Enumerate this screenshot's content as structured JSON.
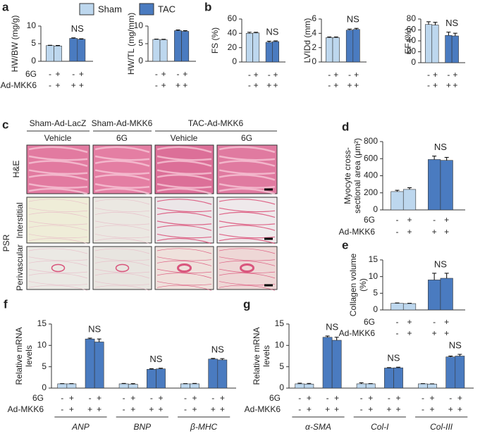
{
  "figure": {
    "panel_labels": [
      "a",
      "b",
      "c",
      "d",
      "e",
      "f",
      "g"
    ],
    "legend": [
      {
        "name": "Sham",
        "color": "#bdd7ee"
      },
      {
        "name": "TAC",
        "color": "#4a7bc0"
      }
    ]
  },
  "micrographs": {
    "column_groups": [
      "Sham-Ad-LacZ",
      "Sham-Ad-MKK6",
      "TAC-Ad-MKK6"
    ],
    "treatments": [
      "Vehicle",
      "6G",
      "Vehicle",
      "6G"
    ],
    "stains": [
      "H&E",
      "PSR"
    ],
    "psr_regions": [
      "Interstitial",
      "Perivascular"
    ]
  },
  "chart_data": [
    {
      "type": "bar",
      "ylabel_lines": [
        "HW/BW (mg/g)"
      ],
      "ylim": [
        0,
        10
      ],
      "yticks": [
        0,
        5,
        10
      ],
      "colors": [
        "#bdd7ee",
        "#bdd7ee",
        "#4a7bc0",
        "#4a7bc0"
      ],
      "groups": [
        {
          "values": [
            4.45,
            4.35,
            6.5,
            6.25
          ],
          "errors": [
            0.1,
            0.15,
            0.15,
            0.15
          ],
          "annotation": "NS"
        }
      ],
      "rows": [
        {
          "name": "6G",
          "signs": [
            "-",
            "+",
            "-",
            "+"
          ]
        },
        {
          "name": "Ad-MKK6",
          "signs": [
            "-",
            "+",
            "+",
            "+"
          ]
        }
      ]
    },
    {
      "type": "bar",
      "ylabel_lines": [
        "HW/TL (mg/mm)"
      ],
      "ylim": [
        0,
        10
      ],
      "yticks": [
        0,
        5,
        10
      ],
      "colors": [
        "#bdd7ee",
        "#bdd7ee",
        "#4a7bc0",
        "#4a7bc0"
      ],
      "groups": [
        {
          "values": [
            6.2,
            6.1,
            8.7,
            8.5
          ],
          "errors": [
            0.1,
            0.15,
            0.2,
            0.2
          ]
        }
      ],
      "rows": [
        {
          "signs": [
            "-",
            "+",
            "-",
            "+"
          ]
        },
        {
          "signs": [
            "-",
            "+",
            "+",
            "+"
          ]
        }
      ]
    },
    {
      "type": "bar",
      "ylabel_lines": [
        "FS (%)"
      ],
      "ylim": [
        0,
        60
      ],
      "yticks": [
        0,
        20,
        40,
        60
      ],
      "colors": [
        "#bdd7ee",
        "#bdd7ee",
        "#4a7bc0",
        "#4a7bc0"
      ],
      "groups": [
        {
          "values": [
            40,
            40.5,
            27.5,
            28.5
          ],
          "errors": [
            1.5,
            1,
            1.5,
            1
          ],
          "annotation": "NS"
        }
      ],
      "rows": [
        {
          "signs": [
            "-",
            "+",
            "-",
            "+"
          ]
        },
        {
          "signs": [
            "-",
            "+",
            "+",
            "+"
          ]
        }
      ]
    },
    {
      "type": "bar",
      "ylabel_lines": [
        "LVIDd (mm)"
      ],
      "ylim": [
        0,
        6
      ],
      "yticks": [
        0,
        2,
        4,
        6
      ],
      "colors": [
        "#bdd7ee",
        "#bdd7ee",
        "#4a7bc0",
        "#4a7bc0"
      ],
      "groups": [
        {
          "values": [
            3.4,
            3.4,
            4.45,
            4.55
          ],
          "errors": [
            0.1,
            0.1,
            0.15,
            0.15
          ],
          "annotation": "NS"
        }
      ],
      "rows": [
        {
          "signs": [
            "-",
            "+",
            "-",
            "+"
          ]
        },
        {
          "signs": [
            "-",
            "+",
            "+",
            "+"
          ]
        }
      ]
    },
    {
      "type": "bar",
      "ylabel_lines": [
        "EF (%)"
      ],
      "ylim": [
        0,
        80
      ],
      "yticks": [
        0,
        20,
        40,
        60,
        80
      ],
      "colors": [
        "#bdd7ee",
        "#bdd7ee",
        "#4a7bc0",
        "#4a7bc0"
      ],
      "groups": [
        {
          "values": [
            70,
            69,
            50,
            49
          ],
          "errors": [
            5,
            5,
            6,
            5
          ],
          "annotation": "NS"
        }
      ],
      "rows": [
        {
          "signs": [
            "-",
            "+",
            "-",
            "+"
          ]
        },
        {
          "signs": [
            "-",
            "+",
            "+",
            "+"
          ]
        }
      ]
    },
    {
      "type": "bar",
      "ylabel_lines": [
        "Myocyte cross-",
        "sectional area (μm²)"
      ],
      "ylim": [
        0,
        800
      ],
      "yticks": [
        0,
        200,
        400,
        600,
        800
      ],
      "colors": [
        "#bdd7ee",
        "#bdd7ee",
        "#4a7bc0",
        "#4a7bc0"
      ],
      "groups": [
        {
          "values": [
            215,
            240,
            590,
            580
          ],
          "errors": [
            15,
            20,
            40,
            35
          ],
          "annotation": "NS"
        }
      ],
      "rows": [
        {
          "name": "6G",
          "signs": [
            "-",
            "+",
            "-",
            "+"
          ]
        },
        {
          "name": "Ad-MKK6",
          "signs": [
            "-",
            "+",
            "+",
            "+"
          ]
        }
      ]
    },
    {
      "type": "bar",
      "ylabel_lines": [
        "Collagen volume",
        "(%)"
      ],
      "ylim": [
        0,
        15
      ],
      "yticks": [
        0,
        5,
        10,
        15
      ],
      "colors": [
        "#bdd7ee",
        "#bdd7ee",
        "#4a7bc0",
        "#4a7bc0"
      ],
      "groups": [
        {
          "values": [
            2,
            1.9,
            9,
            9.5
          ],
          "errors": [
            0.1,
            0.1,
            2,
            1.5
          ],
          "annotation": "NS"
        }
      ],
      "rows": [
        {
          "name": "6G",
          "signs": [
            "-",
            "+",
            "-",
            "+"
          ]
        },
        {
          "name": "Ad-MKK6",
          "signs": [
            "-",
            "+",
            "+",
            "+"
          ]
        }
      ]
    },
    {
      "type": "bar",
      "ylabel_lines": [
        "Relative mRNA",
        "levels"
      ],
      "ylim": [
        0,
        15
      ],
      "yticks": [
        0,
        5,
        10,
        15
      ],
      "colors": [
        "#bdd7ee",
        "#bdd7ee",
        "#4a7bc0",
        "#4a7bc0"
      ],
      "groups": [
        {
          "label": "ANP",
          "values": [
            1,
            1,
            11.5,
            10.8
          ],
          "errors": [
            0.05,
            0.05,
            0.2,
            0.7
          ],
          "annotation": "NS"
        },
        {
          "label": "BNP",
          "values": [
            1,
            0.9,
            4.4,
            4.5
          ],
          "errors": [
            0.1,
            0.15,
            0.15,
            0.15
          ],
          "annotation": "NS"
        },
        {
          "label": "β-MHC",
          "values": [
            1,
            1,
            6.8,
            6.6
          ],
          "errors": [
            0.05,
            0.1,
            0.15,
            0.3
          ],
          "annotation": "NS"
        }
      ],
      "rows": [
        {
          "name": "6G",
          "signs": [
            "-",
            "+",
            "-",
            "+",
            "-",
            "+",
            "-",
            "+",
            "-",
            "+",
            "-",
            "+"
          ]
        },
        {
          "name": "Ad-MKK6",
          "signs": [
            "-",
            "+",
            "+",
            "+",
            "-",
            "+",
            "+",
            "+",
            "-",
            "+",
            "+",
            "+"
          ]
        }
      ]
    },
    {
      "type": "bar",
      "ylabel_lines": [
        "Relative mRNA",
        "levels"
      ],
      "ylim": [
        0,
        15
      ],
      "yticks": [
        0,
        5,
        10,
        15
      ],
      "colors": [
        "#bdd7ee",
        "#bdd7ee",
        "#4a7bc0",
        "#4a7bc0"
      ],
      "groups": [
        {
          "label": "α-SMA",
          "values": [
            1,
            0.95,
            11.9,
            11.2
          ],
          "errors": [
            0.15,
            0.15,
            0.3,
            0.7
          ],
          "annotation": "NS"
        },
        {
          "label": "Col-I",
          "values": [
            1,
            1,
            4.7,
            4.75
          ],
          "errors": [
            0.25,
            0.05,
            0.1,
            0.15
          ],
          "annotation": "NS"
        },
        {
          "label": "Col-III",
          "values": [
            1,
            0.95,
            7.3,
            7.5
          ],
          "errors": [
            0.05,
            0.05,
            0.2,
            0.4
          ],
          "annotation": "NS"
        }
      ],
      "rows": [
        {
          "name": "6G",
          "signs": [
            "-",
            "+",
            "-",
            "+",
            "-",
            "+",
            "-",
            "+",
            "-",
            "+",
            "-",
            "+"
          ]
        },
        {
          "name": "Ad-MKK6",
          "signs": [
            "-",
            "+",
            "+",
            "+",
            "-",
            "+",
            "+",
            "+",
            "-",
            "+",
            "+",
            "+"
          ]
        }
      ]
    }
  ]
}
